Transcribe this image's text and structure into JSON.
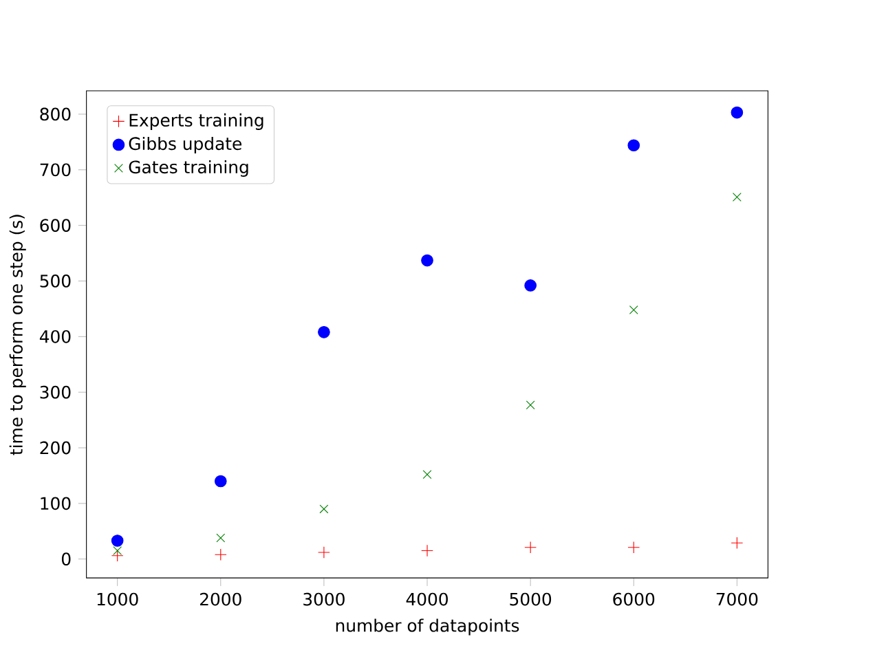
{
  "chart_data": {
    "type": "scatter",
    "xlabel": "number of datapoints",
    "ylabel": "time to perform one step (s)",
    "x": [
      1000,
      2000,
      3000,
      4000,
      5000,
      6000,
      7000
    ],
    "series": [
      {
        "name": "Experts training",
        "color": "#ff0000",
        "marker": "plus",
        "values": [
          6,
          8,
          12,
          15,
          21,
          21,
          29
        ]
      },
      {
        "name": "Gibbs update",
        "color": "#0000ff",
        "marker": "circle",
        "values": [
          33,
          140,
          408,
          537,
          492,
          744,
          803
        ]
      },
      {
        "name": "Gates training",
        "color": "#008000",
        "marker": "cross",
        "values": [
          15,
          38,
          90,
          152,
          277,
          448,
          651
        ]
      }
    ],
    "xlim": [
      700,
      7300
    ],
    "ylim": [
      -34,
      842
    ],
    "xticks": [
      1000,
      2000,
      3000,
      4000,
      5000,
      6000,
      7000
    ],
    "yticks": [
      0,
      100,
      200,
      300,
      400,
      500,
      600,
      700,
      800
    ],
    "grid": false,
    "legend": "top left"
  }
}
